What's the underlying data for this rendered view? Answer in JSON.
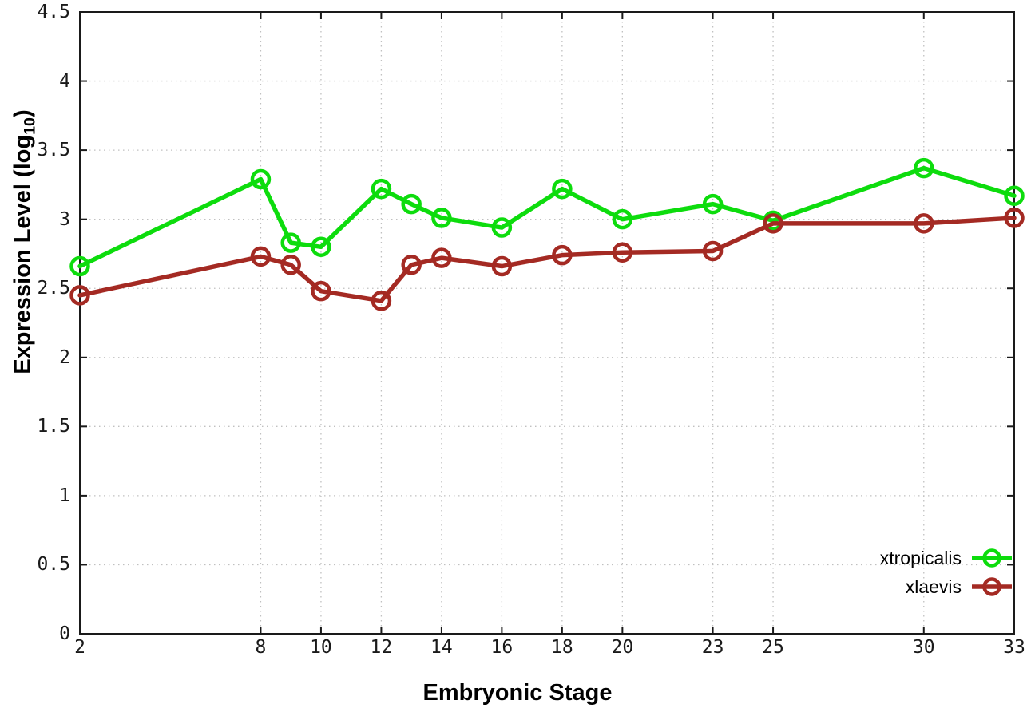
{
  "figure": {
    "ylabel_prefix": "Expression Level (log",
    "ylabel_sub": "10",
    "ylabel_suffix": ")"
  },
  "chart_data": {
    "type": "line",
    "title": "",
    "xlabel": "Embryonic Stage",
    "ylabel": "Expression Level (log10)",
    "x": [
      2,
      8,
      9,
      10,
      12,
      13,
      14,
      16,
      18,
      20,
      23,
      25,
      30,
      33
    ],
    "series": [
      {
        "name": "xtropicalis",
        "color": "#0ddc0d",
        "marker": "open-circle",
        "values": [
          2.66,
          3.29,
          2.83,
          2.8,
          3.22,
          3.11,
          3.01,
          2.94,
          3.22,
          3.0,
          3.11,
          2.99,
          3.37,
          3.17
        ]
      },
      {
        "name": "xlaevis",
        "color": "#a42a23",
        "marker": "open-circle",
        "values": [
          2.45,
          2.73,
          2.67,
          2.48,
          2.41,
          2.67,
          2.72,
          2.66,
          2.74,
          2.76,
          2.77,
          2.97,
          2.97,
          3.01
        ]
      }
    ],
    "xticks": [
      2,
      8,
      10,
      12,
      14,
      16,
      18,
      20,
      23,
      25,
      30,
      33
    ],
    "yticks": [
      0,
      0.5,
      1,
      1.5,
      2,
      2.5,
      3,
      3.5,
      4,
      4.5
    ],
    "xlim": [
      2,
      33
    ],
    "ylim": [
      0,
      4.5
    ],
    "grid": true,
    "grid_style": "dotted",
    "legend_position": "bottom-right",
    "colors": {
      "axis": "#1a1a1a",
      "gridline": "#c0c0c0",
      "background": "#ffffff"
    }
  }
}
